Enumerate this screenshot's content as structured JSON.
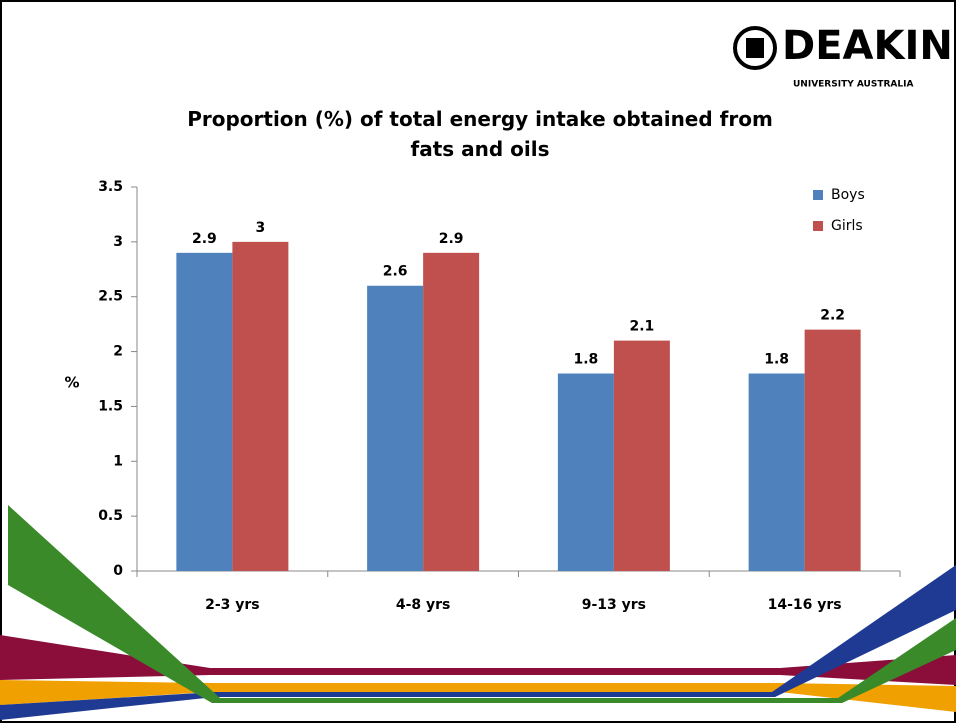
{
  "logo": {
    "name": "DEAKIN",
    "tagline": "UNIVERSITY AUSTRALIA"
  },
  "chart_data": {
    "type": "bar",
    "title": "Proportion (%) of total energy intake obtained from fats and oils",
    "y_label": "%",
    "categories": [
      "2-3 yrs",
      "4-8 yrs",
      "9-13 yrs",
      "14-16 yrs"
    ],
    "series": [
      {
        "name": "Boys",
        "color": "#4f81bd",
        "values": [
          2.9,
          2.6,
          1.8,
          1.8
        ]
      },
      {
        "name": "Girls",
        "color": "#c0504d",
        "values": [
          3,
          2.9,
          2.1,
          2.2
        ]
      }
    ],
    "ylim": [
      0,
      3.5
    ],
    "yticks": [
      0,
      0.5,
      1,
      1.5,
      2,
      2.5,
      3,
      3.5
    ],
    "legend": "top-right",
    "grid": false
  }
}
